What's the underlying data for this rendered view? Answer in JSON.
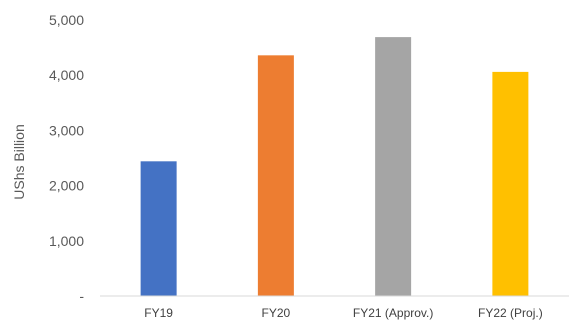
{
  "chart_data": {
    "type": "bar",
    "categories": [
      "FY19",
      "FY20",
      "FY21 (Approv.)",
      "FY22 (Proj.)"
    ],
    "values": [
      2440,
      4360,
      4690,
      4060
    ],
    "colors": [
      "#4472C4",
      "#ED7D31",
      "#A5A5A5",
      "#FFC000"
    ],
    "ylabel": "UShs Billion",
    "ylim": [
      0,
      5000
    ],
    "yticks": [
      0,
      1000,
      2000,
      3000,
      4000,
      5000
    ],
    "ytick_labels": [
      "-",
      "1,000",
      "2,000",
      "3,000",
      "4,000",
      "5,000"
    ],
    "grid": false,
    "legend": "none"
  }
}
